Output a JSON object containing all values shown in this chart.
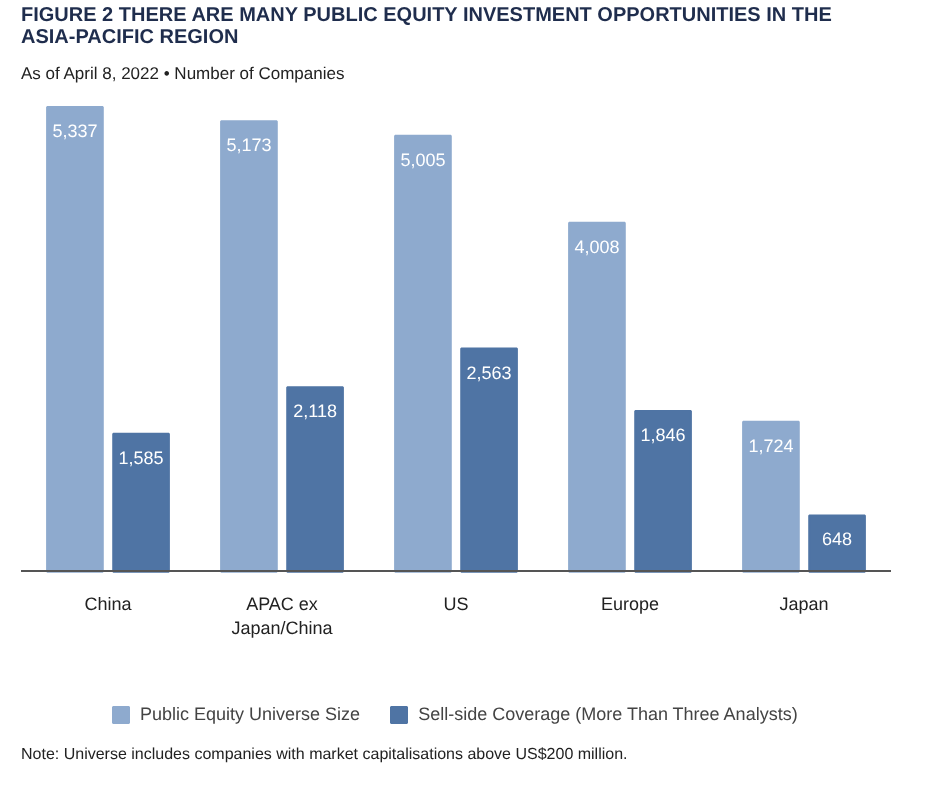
{
  "chart_data": {
    "type": "bar",
    "title": "FIGURE 2 THERE ARE MANY PUBLIC EQUITY INVESTMENT OPPORTUNITIES IN THE ASIA-PACIFIC REGION",
    "subtitle": "As of April 8, 2022 • Number of Companies",
    "categories": [
      "China",
      "APAC ex Japan/China",
      "US",
      "Europe",
      "Japan"
    ],
    "series": [
      {
        "name": "Public Equity Universe Size",
        "color": "#8eaace",
        "values": [
          5337,
          5173,
          5005,
          4008,
          1724
        ],
        "value_labels": [
          "5,337",
          "5,173",
          "5,005",
          "4,008",
          "1,724"
        ]
      },
      {
        "name": "Sell-side Coverage (More Than Three Analysts)",
        "color": "#4f74a4",
        "values": [
          1585,
          2118,
          2563,
          1846,
          648
        ],
        "value_labels": [
          "1,585",
          "2,118",
          "2,563",
          "1,846",
          "648"
        ]
      }
    ],
    "legend": "bottom",
    "annotations": [
      "Note: Universe includes companies with market capitalisations above US$200 million."
    ]
  }
}
